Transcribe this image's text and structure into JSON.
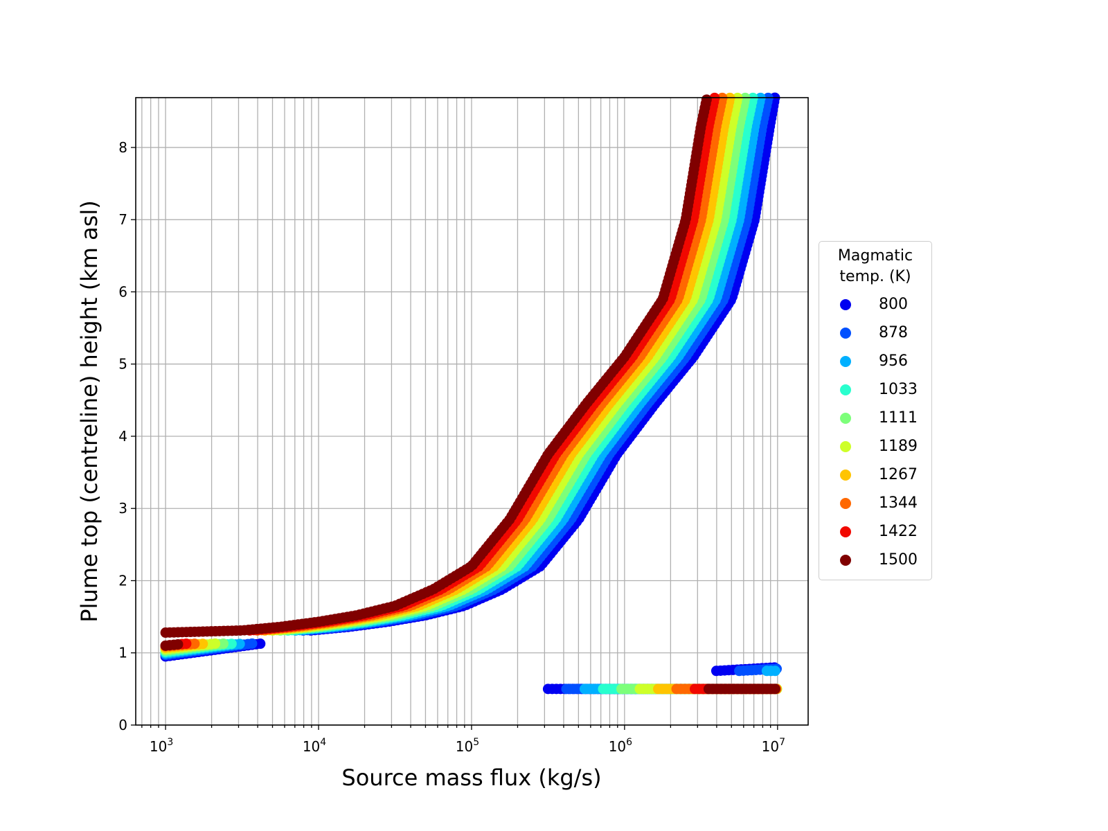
{
  "chart_data": {
    "type": "scatter",
    "xlabel": "Source mass flux (kg/s)",
    "ylabel": "Plume top (centreline) height (km asl)",
    "xscale": "log",
    "xlim_log10": [
      2.805,
      7.2
    ],
    "ylim": [
      0,
      8.69
    ],
    "xticks": [
      {
        "base": "10",
        "exp": "3",
        "log10": 3
      },
      {
        "base": "10",
        "exp": "4",
        "log10": 4
      },
      {
        "base": "10",
        "exp": "5",
        "log10": 5
      },
      {
        "base": "10",
        "exp": "6",
        "log10": 6
      },
      {
        "base": "10",
        "exp": "7",
        "log10": 7
      }
    ],
    "yticks": [
      "0",
      "1",
      "2",
      "3",
      "4",
      "5",
      "6",
      "7",
      "8"
    ],
    "grid": "major-and-minor",
    "legend": {
      "title_line1": "Magmatic",
      "title_line2": "temp. (K)",
      "placement": "outside-right"
    },
    "main_heights_km": [
      1.31,
      1.36,
      1.43,
      1.52,
      1.65,
      1.88,
      2.2,
      2.85,
      3.75,
      4.45,
      5.1,
      5.9,
      7.0,
      8.3,
      8.9
    ],
    "series": [
      {
        "name": "800",
        "color": "#0000f1",
        "main_log10_flux": [
          3.95,
          4.2,
          4.45,
          4.7,
          4.95,
          5.2,
          5.45,
          5.7,
          5.95,
          6.2,
          6.45,
          6.7,
          6.85,
          6.95,
          7.01
        ],
        "lower_left": [
          [
            3.0,
            0.95
          ],
          [
            3.63,
            1.13
          ]
        ],
        "low_branch": [
          [
            5.5,
            0.5
          ],
          [
            7.0,
            0.5
          ]
        ],
        "low_branch2": [
          [
            6.6,
            0.75
          ],
          [
            7.0,
            0.8
          ]
        ]
      },
      {
        "name": "878",
        "color": "#0050ff",
        "main_log10_flux": [
          3.9,
          4.15,
          4.4,
          4.65,
          4.9,
          5.15,
          5.4,
          5.65,
          5.9,
          6.15,
          6.4,
          6.65,
          6.8,
          6.9,
          6.96
        ],
        "lower_left": [
          [
            3.0,
            0.97
          ],
          [
            3.57,
            1.13
          ]
        ],
        "low_branch": [
          [
            5.62,
            0.5
          ],
          [
            7.0,
            0.5
          ]
        ],
        "low_branch2": [
          [
            6.75,
            0.75
          ],
          [
            7.0,
            0.78
          ]
        ]
      },
      {
        "name": "956",
        "color": "#00b0ff",
        "main_log10_flux": [
          3.85,
          4.1,
          4.35,
          4.6,
          4.85,
          5.1,
          5.35,
          5.6,
          5.85,
          6.1,
          6.35,
          6.6,
          6.75,
          6.85,
          6.91
        ],
        "lower_left": [
          [
            3.0,
            0.99
          ],
          [
            3.51,
            1.13
          ]
        ],
        "low_branch": [
          [
            5.74,
            0.5
          ],
          [
            7.0,
            0.5
          ]
        ],
        "low_branch2": [
          [
            6.93,
            0.75
          ],
          [
            7.0,
            0.75
          ]
        ]
      },
      {
        "name": "1033",
        "color": "#29ffce",
        "main_log10_flux": [
          3.8,
          4.05,
          4.3,
          4.55,
          4.8,
          5.05,
          5.3,
          5.55,
          5.8,
          6.05,
          6.3,
          6.55,
          6.7,
          6.8,
          6.86
        ],
        "lower_left": [
          [
            3.0,
            1.01
          ],
          [
            3.45,
            1.13
          ]
        ],
        "low_branch": [
          [
            5.86,
            0.5
          ],
          [
            7.0,
            0.5
          ]
        ]
      },
      {
        "name": "1111",
        "color": "#7dff7a",
        "main_log10_flux": [
          3.75,
          4.0,
          4.25,
          4.5,
          4.75,
          5.0,
          5.25,
          5.5,
          5.75,
          6.0,
          6.25,
          6.5,
          6.65,
          6.75,
          6.81
        ],
        "lower_left": [
          [
            3.0,
            1.03
          ],
          [
            3.39,
            1.13
          ]
        ],
        "low_branch": [
          [
            5.98,
            0.5
          ],
          [
            7.0,
            0.5
          ]
        ]
      },
      {
        "name": "1189",
        "color": "#ceff29",
        "main_log10_flux": [
          3.7,
          3.95,
          4.2,
          4.45,
          4.7,
          4.95,
          5.2,
          5.45,
          5.7,
          5.95,
          6.2,
          6.45,
          6.6,
          6.7,
          6.76
        ],
        "lower_left": [
          [
            3.0,
            1.05
          ],
          [
            3.33,
            1.13
          ]
        ],
        "low_branch": [
          [
            6.1,
            0.5
          ],
          [
            7.0,
            0.5
          ]
        ]
      },
      {
        "name": "1267",
        "color": "#ffc400",
        "main_log10_flux": [
          3.65,
          3.9,
          4.15,
          4.4,
          4.65,
          4.9,
          5.15,
          5.4,
          5.65,
          5.9,
          6.15,
          6.4,
          6.55,
          6.65,
          6.71
        ],
        "lower_left": [
          [
            3.0,
            1.07
          ],
          [
            3.27,
            1.13
          ]
        ],
        "low_branch": [
          [
            6.22,
            0.5
          ],
          [
            7.0,
            0.5
          ]
        ]
      },
      {
        "name": "1344",
        "color": "#ff6800",
        "main_log10_flux": [
          3.6,
          3.85,
          4.1,
          4.35,
          4.6,
          4.85,
          5.1,
          5.35,
          5.6,
          5.85,
          6.1,
          6.35,
          6.5,
          6.6,
          6.66
        ],
        "lower_left": [
          [
            3.0,
            1.09
          ],
          [
            3.21,
            1.13
          ]
        ],
        "low_branch": [
          [
            6.34,
            0.5
          ],
          [
            7.0,
            0.5
          ]
        ]
      },
      {
        "name": "1422",
        "color": "#f10800",
        "main_log10_flux": [
          3.55,
          3.8,
          4.05,
          4.3,
          4.55,
          4.8,
          5.05,
          5.3,
          5.55,
          5.8,
          6.05,
          6.3,
          6.45,
          6.55,
          6.61
        ],
        "lower_left": [
          [
            3.0,
            1.1
          ],
          [
            3.15,
            1.13
          ]
        ],
        "low_branch": [
          [
            6.46,
            0.5
          ],
          [
            7.0,
            0.5
          ]
        ]
      },
      {
        "name": "1500",
        "color": "#800000",
        "main_log10_flux": [
          3.5,
          3.75,
          4.0,
          4.25,
          4.5,
          4.75,
          5.0,
          5.25,
          5.5,
          5.75,
          6.0,
          6.25,
          6.4,
          6.5,
          6.56
        ],
        "main_prefix": [
          [
            3.0,
            1.28
          ]
        ],
        "lower_left": [
          [
            3.0,
            1.1
          ],
          [
            3.09,
            1.12
          ]
        ],
        "low_branch": [
          [
            6.55,
            0.5
          ],
          [
            7.0,
            0.5
          ]
        ]
      }
    ]
  }
}
